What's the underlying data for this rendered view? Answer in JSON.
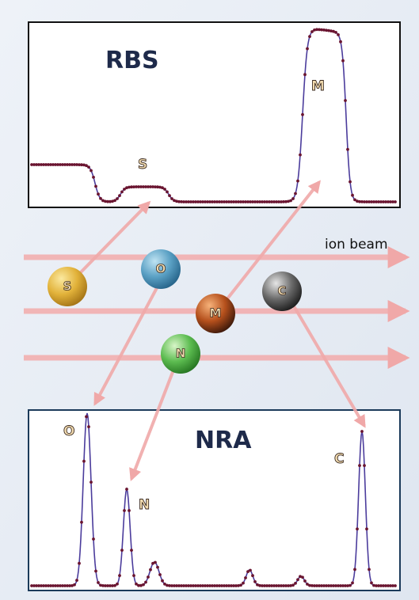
{
  "panels": {
    "rbs": {
      "title": "RBS",
      "labels": [
        "S",
        "M"
      ]
    },
    "nra": {
      "title": "NRA",
      "labels": [
        "O",
        "N",
        "C"
      ]
    }
  },
  "beam_label": "ion beam",
  "atoms": [
    "S",
    "O",
    "M",
    "N",
    "C"
  ]
}
